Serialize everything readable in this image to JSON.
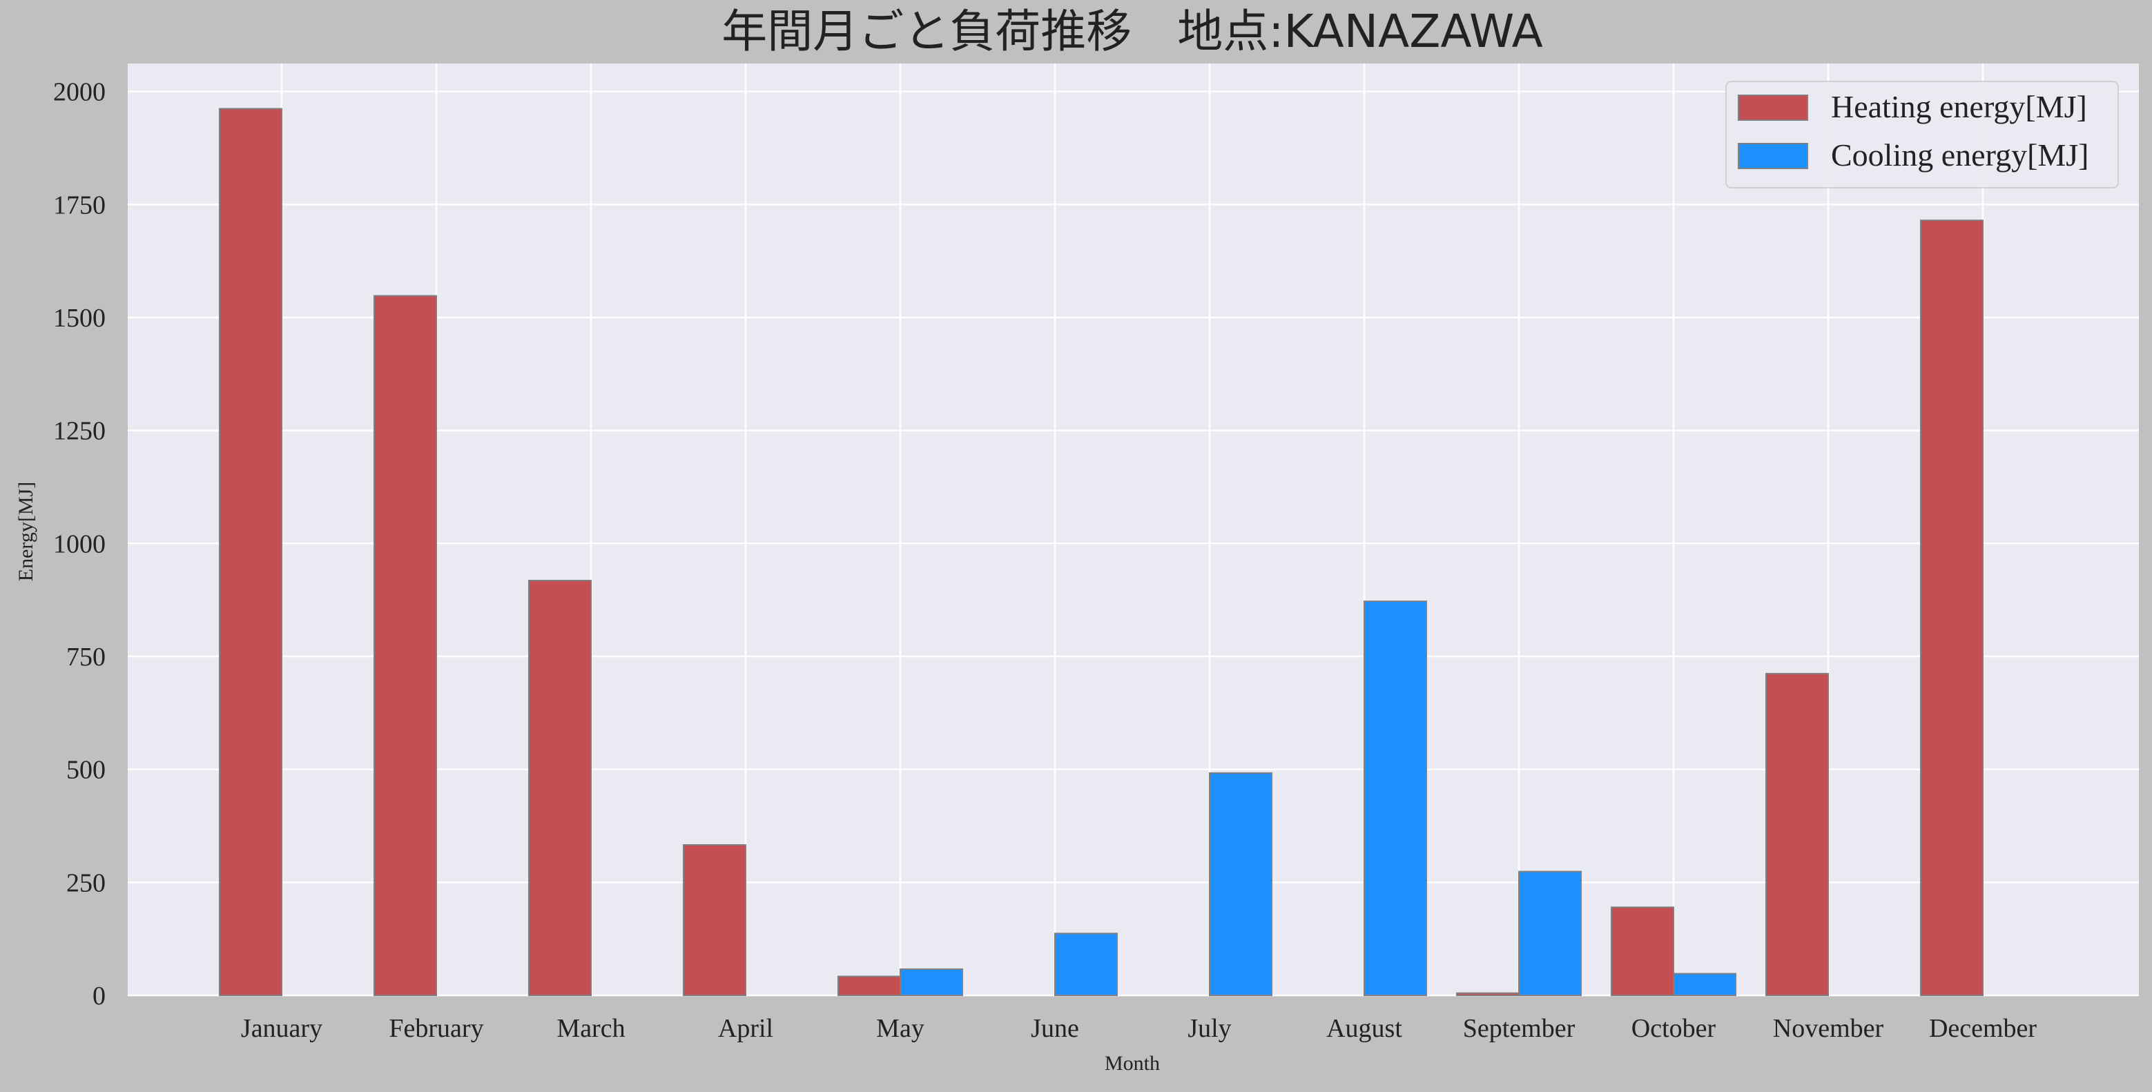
{
  "chart_data": {
    "type": "bar",
    "title": "年間月ごと負荷推移　地点:KANAZAWA",
    "xlabel": "Month",
    "ylabel": "Energy[MJ]",
    "categories": [
      "January",
      "February",
      "March",
      "April",
      "May",
      "June",
      "July",
      "August",
      "September",
      "October",
      "November",
      "December"
    ],
    "series": [
      {
        "name": "Heating energy[MJ]",
        "color": "#c44e52",
        "values": [
          1962,
          1548,
          918,
          333,
          42,
          0,
          0,
          0,
          5,
          195,
          712,
          1715
        ]
      },
      {
        "name": "Cooling energy[MJ]",
        "color": "#1e90ff",
        "values": [
          0,
          0,
          0,
          0,
          58,
          137,
          492,
          872,
          274,
          48,
          0,
          0
        ]
      }
    ],
    "ylim": [
      0,
      2062
    ],
    "yticks": [
      0,
      250,
      500,
      750,
      1000,
      1250,
      1500,
      1750,
      2000
    ],
    "grid": true,
    "legend_position": "top-right",
    "plot_background": "#eaeaf2",
    "figure_background": "#c0c0c0",
    "bar_edge_color": "#808080"
  }
}
